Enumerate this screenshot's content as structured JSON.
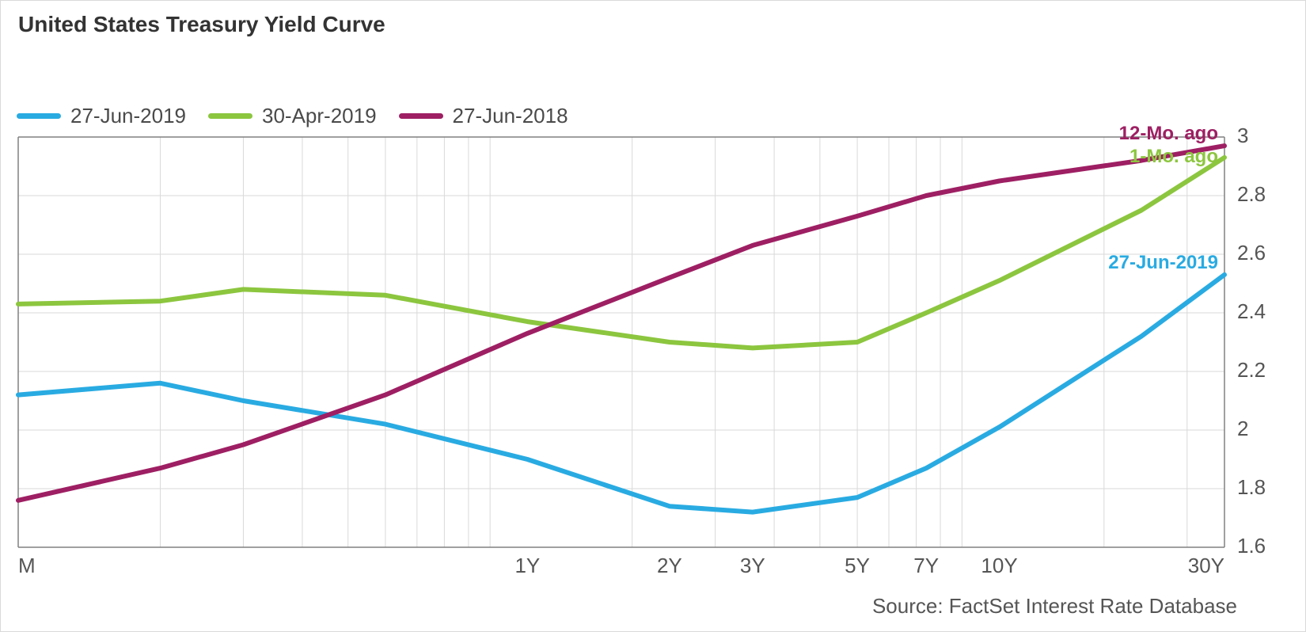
{
  "title": "United States Treasury Yield Curve",
  "source": "Source: FactSet Interest Rate Database",
  "legend": {
    "items": [
      {
        "label": "27-Jun-2019",
        "color": "#29abe2"
      },
      {
        "label": "30-Apr-2019",
        "color": "#8cc63f"
      },
      {
        "label": "27-Jun-2018",
        "color": "#9e1f63"
      }
    ]
  },
  "chart": {
    "type": "line",
    "background_color": "#ffffff",
    "grid_color": "#d9d9d9",
    "axis_color": "#808080",
    "line_width": 6,
    "x_axis": {
      "scale": "log",
      "base": 10,
      "domain_months": [
        1,
        360
      ],
      "gridlines_months": [
        1,
        2,
        3,
        4,
        5,
        6,
        7,
        8,
        9,
        10,
        20,
        30,
        40,
        50,
        60,
        70,
        80,
        90,
        100,
        200,
        300
      ],
      "tick_labels": [
        {
          "months": 1,
          "label": "M"
        },
        {
          "months": 12,
          "label": "1Y"
        },
        {
          "months": 24,
          "label": "2Y"
        },
        {
          "months": 36,
          "label": "3Y"
        },
        {
          "months": 60,
          "label": "5Y"
        },
        {
          "months": 84,
          "label": "7Y"
        },
        {
          "months": 120,
          "label": "10Y"
        },
        {
          "months": 360,
          "label": "30Y"
        }
      ],
      "label_fontsize": 26,
      "label_color": "#555555"
    },
    "y_axis": {
      "domain": [
        1.6,
        3.0
      ],
      "ticks": [
        1.6,
        1.8,
        2.0,
        2.2,
        2.4,
        2.6,
        2.8,
        3.0
      ],
      "tick_labels": [
        "1.6",
        "1.8",
        "2",
        "2.2",
        "2.4",
        "2.6",
        "2.8",
        "3"
      ],
      "label_fontsize": 26,
      "label_color": "#555555"
    },
    "series": [
      {
        "name": "27-Jun-2019",
        "color": "#29abe2",
        "end_label": "27-Jun-2019",
        "points_months": [
          [
            1,
            2.12
          ],
          [
            2,
            2.16
          ],
          [
            3,
            2.1
          ],
          [
            6,
            2.02
          ],
          [
            12,
            1.9
          ],
          [
            24,
            1.74
          ],
          [
            36,
            1.72
          ],
          [
            60,
            1.77
          ],
          [
            84,
            1.87
          ],
          [
            120,
            2.01
          ],
          [
            240,
            2.32
          ],
          [
            360,
            2.53
          ]
        ]
      },
      {
        "name": "30-Apr-2019",
        "color": "#8cc63f",
        "end_label": "1-Mo. ago",
        "points_months": [
          [
            1,
            2.43
          ],
          [
            2,
            2.44
          ],
          [
            3,
            2.48
          ],
          [
            6,
            2.46
          ],
          [
            12,
            2.37
          ],
          [
            24,
            2.3
          ],
          [
            36,
            2.28
          ],
          [
            60,
            2.3
          ],
          [
            84,
            2.4
          ],
          [
            120,
            2.51
          ],
          [
            240,
            2.75
          ],
          [
            360,
            2.93
          ]
        ]
      },
      {
        "name": "27-Jun-2018",
        "color": "#9e1f63",
        "end_label": "12-Mo. ago",
        "points_months": [
          [
            1,
            1.76
          ],
          [
            2,
            1.87
          ],
          [
            3,
            1.95
          ],
          [
            6,
            2.12
          ],
          [
            12,
            2.33
          ],
          [
            24,
            2.52
          ],
          [
            36,
            2.63
          ],
          [
            60,
            2.73
          ],
          [
            84,
            2.8
          ],
          [
            120,
            2.85
          ],
          [
            240,
            2.92
          ],
          [
            360,
            2.97
          ]
        ]
      }
    ],
    "end_label_fontsize": 24,
    "end_label_weight": "bold"
  }
}
